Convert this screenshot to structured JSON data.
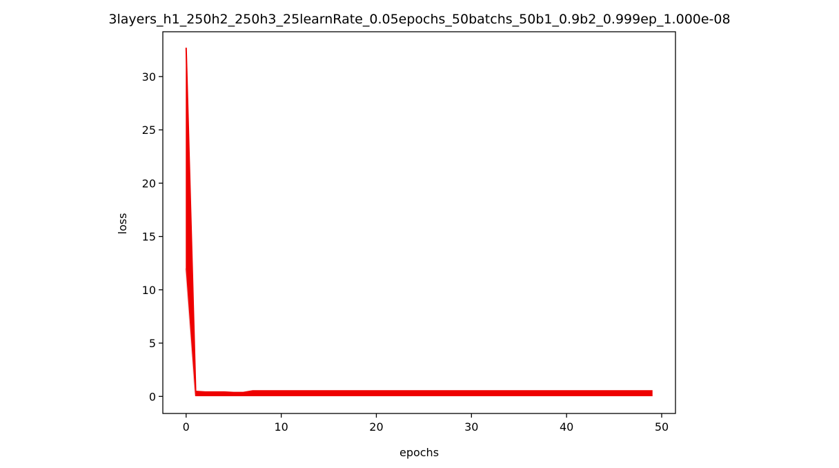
{
  "chart_data": {
    "type": "line",
    "title": "3layers_h1_250h2_250h3_25learnRate_0.05epochs_50batchs_50b1_0.9b2_0.999ep_1.000e-08",
    "xlabel": "epochs",
    "ylabel": "loss",
    "xlim": [
      -2.45,
      51.45
    ],
    "ylim": [
      -1.6,
      34.2
    ],
    "xticks": [
      0,
      10,
      20,
      30,
      40,
      50
    ],
    "yticks": [
      0,
      5,
      10,
      15,
      20,
      25,
      30
    ],
    "grid": false,
    "legend": "none",
    "color_main": "#ee0000",
    "color_faint": "#f2c4c4",
    "band": {
      "x": [
        0,
        1,
        2,
        3,
        4,
        5,
        6,
        7,
        8,
        9,
        10,
        11,
        12,
        13,
        14,
        15,
        16,
        17,
        18,
        19,
        20,
        21,
        22,
        23,
        24,
        25,
        26,
        27,
        28,
        29,
        30,
        31,
        32,
        33,
        34,
        35,
        36,
        37,
        38,
        39,
        40,
        41,
        42,
        43,
        44,
        45,
        46,
        47,
        48,
        49
      ],
      "upper": [
        32.7,
        0.5,
        0.45,
        0.45,
        0.45,
        0.4,
        0.4,
        0.55,
        0.55,
        0.55,
        0.55,
        0.55,
        0.55,
        0.55,
        0.55,
        0.55,
        0.55,
        0.55,
        0.55,
        0.55,
        0.55,
        0.55,
        0.55,
        0.55,
        0.55,
        0.55,
        0.55,
        0.55,
        0.55,
        0.55,
        0.55,
        0.55,
        0.55,
        0.55,
        0.55,
        0.55,
        0.55,
        0.55,
        0.55,
        0.55,
        0.55,
        0.55,
        0.55,
        0.55,
        0.55,
        0.55,
        0.55,
        0.55,
        0.55,
        0.55
      ],
      "lower": [
        12.0,
        0.05,
        0.05,
        0.05,
        0.05,
        0.05,
        0.05,
        0.05,
        0.05,
        0.05,
        0.05,
        0.05,
        0.05,
        0.05,
        0.05,
        0.05,
        0.05,
        0.05,
        0.05,
        0.05,
        0.05,
        0.05,
        0.05,
        0.05,
        0.05,
        0.05,
        0.05,
        0.05,
        0.05,
        0.05,
        0.05,
        0.05,
        0.05,
        0.05,
        0.05,
        0.05,
        0.05,
        0.05,
        0.05,
        0.05,
        0.05,
        0.05,
        0.05,
        0.05,
        0.05,
        0.05,
        0.05,
        0.05,
        0.05,
        0.05
      ]
    }
  }
}
